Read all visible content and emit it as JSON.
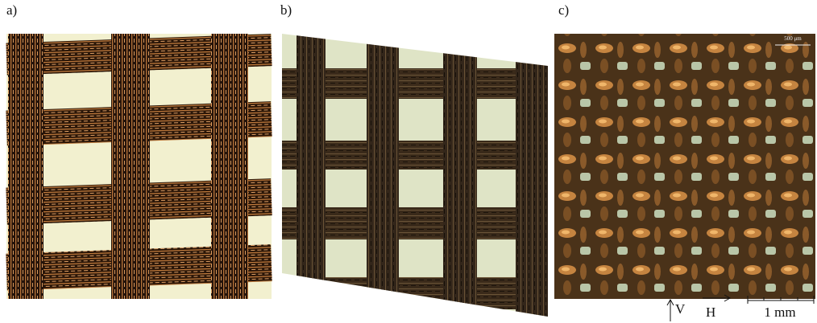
{
  "panels": [
    {
      "label": "a)"
    },
    {
      "label": "b)"
    },
    {
      "label": "c)",
      "scale_label": "500 μm"
    }
  ],
  "directions": {
    "vertical": "V",
    "horizontal": "H"
  },
  "scale_bar": "1 mm"
}
